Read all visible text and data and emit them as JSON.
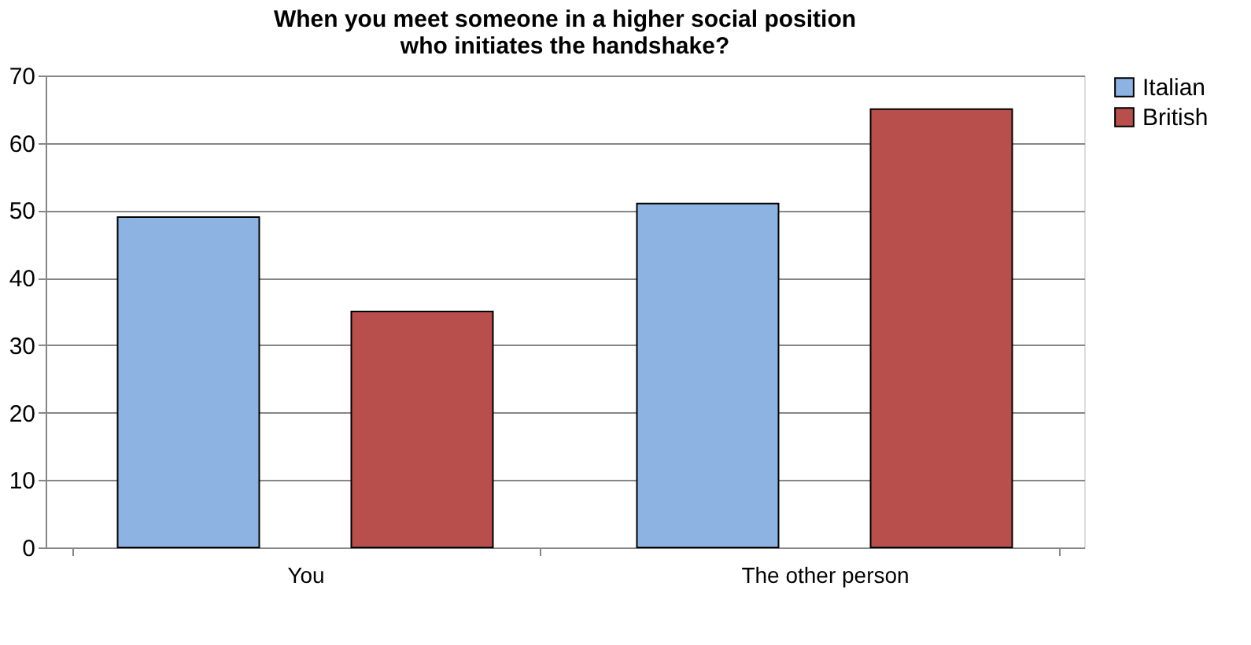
{
  "chart_data": {
    "type": "bar",
    "title": "When you meet someone in a higher social position who initiates the handshake?",
    "categories": [
      "You",
      "The other person"
    ],
    "series": [
      {
        "name": "Italian",
        "color": "#8db3e2",
        "values": [
          49,
          51
        ]
      },
      {
        "name": "British",
        "color": "#b94f4c",
        "values": [
          35,
          65
        ]
      }
    ],
    "ylim": [
      0,
      70
    ],
    "yticks": [
      0,
      10,
      20,
      30,
      40,
      50,
      60,
      70
    ],
    "grid": "y",
    "legend": "right"
  }
}
